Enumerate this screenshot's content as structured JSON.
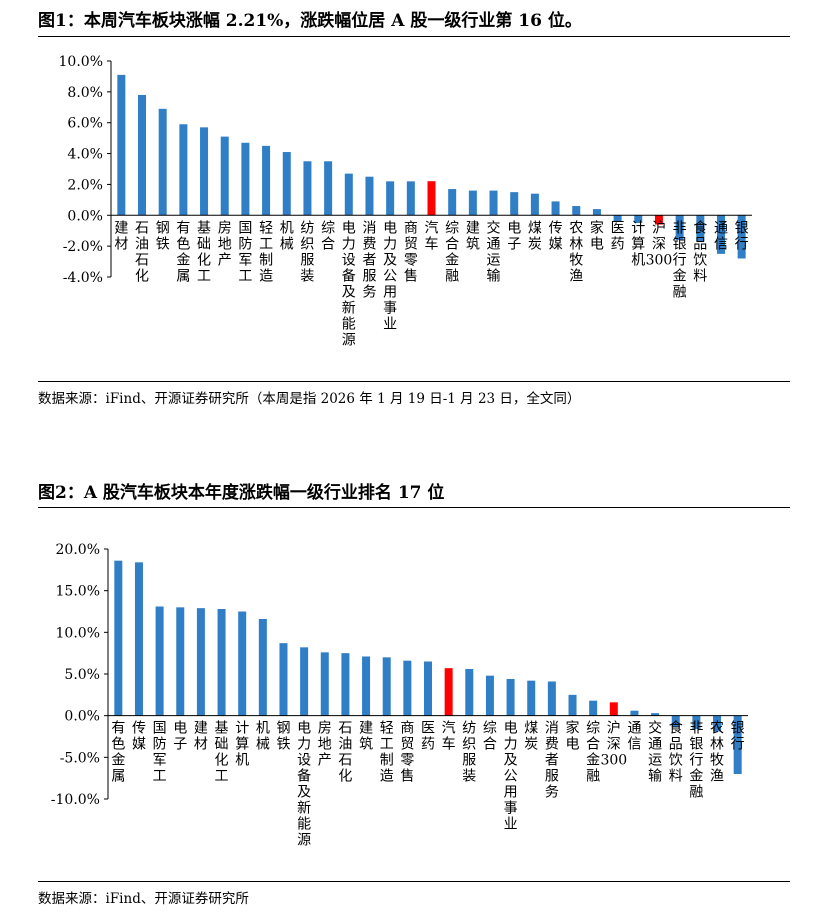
{
  "colors": {
    "bar": "#2f7ec6",
    "highlight": "#ff0000",
    "axis": "#000000"
  },
  "chart_data": [
    {
      "type": "bar",
      "title": "图1：本周汽车板块涨幅 2.21%，涨跌幅位居 A 股一级行业第 16 位。",
      "source": "数据来源：iFind、开源证券研究所（本周是指 2026 年 1 月 19 日-1 月 23 日，全文同）",
      "ylim": [
        -4,
        10
      ],
      "yticks": [
        -4,
        -2,
        0,
        2,
        4,
        6,
        8,
        10
      ],
      "ytick_labels": [
        "-4.0%",
        "-2.0%",
        "0.0%",
        "2.0%",
        "4.0%",
        "6.0%",
        "8.0%",
        "10.0%"
      ],
      "highlight": [
        "汽车",
        "沪深300"
      ],
      "categories": [
        "建材",
        "石油石化",
        "钢铁",
        "有色金属",
        "基础化工",
        "房地产",
        "国防军工",
        "轻工制造",
        "机械",
        "纺织服装",
        "综合",
        "电力设备及新能源",
        "消费者服务",
        "电力及公用事业",
        "商贸零售",
        "汽车",
        "综合金融",
        "建筑",
        "交通运输",
        "电子",
        "煤炭",
        "传媒",
        "农林牧渔",
        "家电",
        "医药",
        "计算机",
        "沪深300",
        "非银行金融",
        "食品饮料",
        "通信",
        "银行"
      ],
      "values": [
        9.1,
        7.8,
        6.9,
        5.9,
        5.7,
        5.1,
        4.7,
        4.5,
        4.1,
        3.5,
        3.5,
        2.7,
        2.5,
        2.2,
        2.2,
        2.21,
        1.7,
        1.6,
        1.6,
        1.5,
        1.4,
        0.9,
        0.6,
        0.4,
        -0.4,
        -0.5,
        -0.6,
        -1.6,
        -1.7,
        -2.5,
        -2.8
      ]
    },
    {
      "type": "bar",
      "title": "图2：A 股汽车板块本年度涨跌幅一级行业排名 17 位",
      "source": "数据来源：iFind、开源证券研究所",
      "ylim": [
        -10,
        20
      ],
      "yticks": [
        -10,
        -5,
        0,
        5,
        10,
        15,
        20
      ],
      "ytick_labels": [
        "-10.0%",
        "-5.0%",
        "0.0%",
        "5.0%",
        "10.0%",
        "15.0%",
        "20.0%"
      ],
      "highlight": [
        "汽车",
        "沪深300"
      ],
      "categories": [
        "有色金属",
        "传媒",
        "国防军工",
        "电子",
        "建材",
        "基础化工",
        "计算机",
        "机械",
        "钢铁",
        "电力设备及新能源",
        "房地产",
        "石油石化",
        "建筑",
        "轻工制造",
        "商贸零售",
        "医药",
        "汽车",
        "纺织服装",
        "综合",
        "电力及公用事业",
        "煤炭",
        "消费者服务",
        "家电",
        "综合金融",
        "沪深300",
        "通信",
        "交通运输",
        "食品饮料",
        "非银行金融",
        "农林牧渔",
        "银行"
      ],
      "values": [
        18.6,
        18.4,
        13.1,
        13.0,
        12.9,
        12.8,
        12.5,
        11.6,
        8.7,
        8.2,
        7.6,
        7.5,
        7.1,
        7.0,
        6.6,
        6.5,
        5.7,
        5.6,
        4.8,
        4.4,
        4.2,
        4.1,
        2.5,
        1.8,
        1.6,
        0.6,
        0.3,
        -1.4,
        -1.6,
        -1.9,
        -7.0
      ]
    }
  ]
}
